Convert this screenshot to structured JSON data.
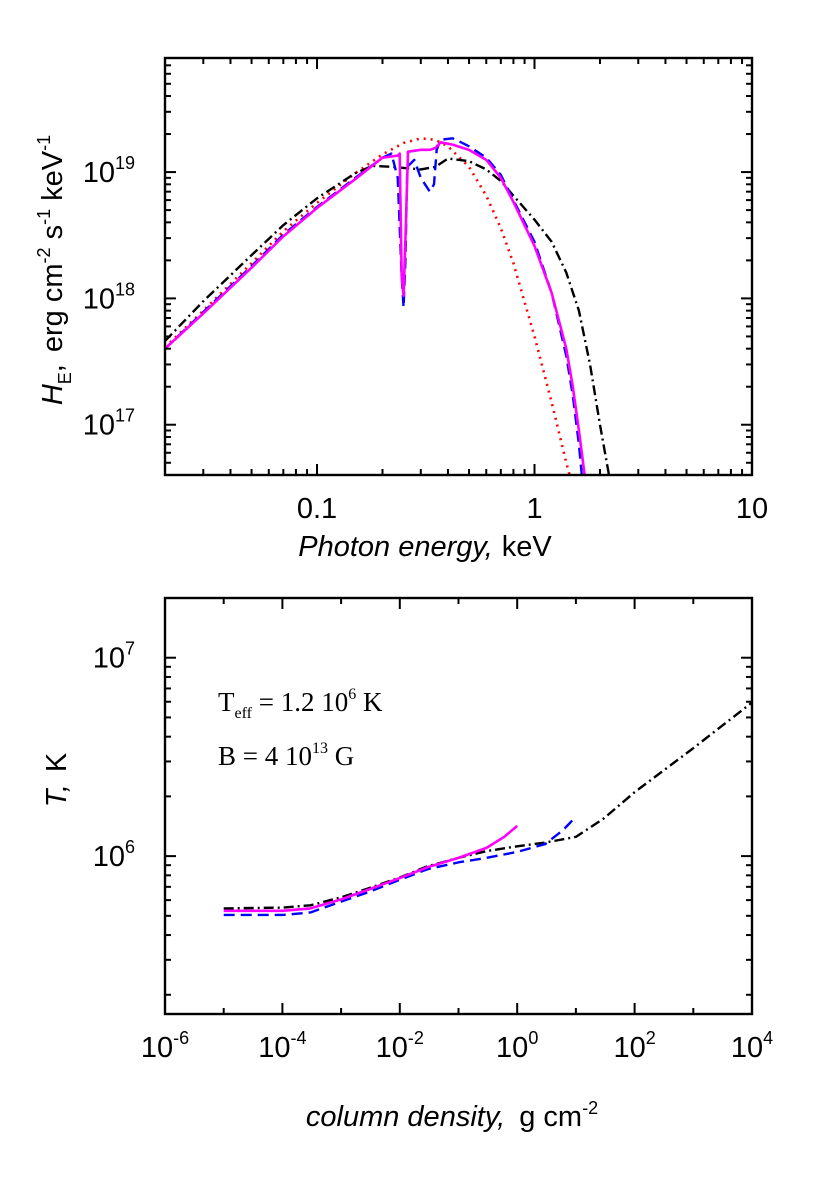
{
  "chart_data": [
    {
      "type": "line",
      "id": "spectrum",
      "xscale": "log",
      "yscale": "log",
      "xlim": [
        0.02,
        10
      ],
      "ylim": [
        4e+16,
        8e+19
      ],
      "xlabel_italic": "Photon energy,",
      "xlabel_unit": "keV",
      "ylabel_symbol": "H",
      "ylabel_sub": "E",
      "ylabel_comma": ",",
      "ylabel_unit_parts": [
        "erg cm",
        "-2",
        " s",
        "-1",
        " keV",
        "-1"
      ],
      "xticks": [
        {
          "value": 0.1,
          "label": "0.1"
        },
        {
          "value": 1,
          "label": "1"
        },
        {
          "value": 10,
          "label": "10"
        }
      ],
      "yticks": [
        {
          "value": 1e+17,
          "base": "10",
          "exp": "17"
        },
        {
          "value": 1e+18,
          "base": "10",
          "exp": "18"
        },
        {
          "value": 1e+19,
          "base": "10",
          "exp": "19"
        }
      ],
      "series": [
        {
          "name": "dotted-red",
          "color": "#ff0000",
          "dash": "2,5",
          "width": 2.6,
          "points": [
            [
              0.02,
              4.1e+17
            ],
            [
              0.03,
              8e+17
            ],
            [
              0.05,
              1.9e+18
            ],
            [
              0.07,
              3.4e+18
            ],
            [
              0.1,
              5.7e+18
            ],
            [
              0.15,
              9.8e+18
            ],
            [
              0.2,
              1.38e+19
            ],
            [
              0.25,
              1.7e+19
            ],
            [
              0.3,
              1.85e+19
            ],
            [
              0.35,
              1.8e+19
            ],
            [
              0.4,
              1.6e+19
            ],
            [
              0.5,
              1.1e+19
            ],
            [
              0.6,
              6.5e+18
            ],
            [
              0.7,
              3.6e+18
            ],
            [
              0.8,
              1.9e+18
            ],
            [
              1.0,
              5e+17
            ],
            [
              1.2,
              1.5e+17
            ],
            [
              1.4,
              5e+16
            ],
            [
              1.45,
              4e+16
            ]
          ]
        },
        {
          "name": "dash-dot-black",
          "color": "#000000",
          "dash": "10,4,2,4",
          "width": 2.4,
          "points": [
            [
              0.02,
              4.6e+17
            ],
            [
              0.03,
              9.5e+17
            ],
            [
              0.05,
              2.2e+18
            ],
            [
              0.07,
              3.8e+18
            ],
            [
              0.1,
              6.2e+18
            ],
            [
              0.15,
              9.8e+18
            ],
            [
              0.18,
              1.12e+19
            ],
            [
              0.22,
              1.1e+19
            ],
            [
              0.3,
              1.05e+19
            ],
            [
              0.35,
              1.1e+19
            ],
            [
              0.4,
              1.28e+19
            ],
            [
              0.5,
              1.22e+19
            ],
            [
              0.6,
              1.05e+19
            ],
            [
              0.7,
              8.5e+18
            ],
            [
              0.8,
              6.5e+18
            ],
            [
              1.0,
              4.2e+18
            ],
            [
              1.2,
              2.8e+18
            ],
            [
              1.4,
              1.6e+18
            ],
            [
              1.6,
              8e+17
            ],
            [
              1.8,
              3e+17
            ],
            [
              2.0,
              1e+17
            ],
            [
              2.2,
              4e+16
            ]
          ]
        },
        {
          "name": "dashed-blue",
          "color": "#0000ff",
          "dash": "11,6",
          "width": 2.4,
          "points": [
            [
              0.02,
              4e+17
            ],
            [
              0.03,
              7.8e+17
            ],
            [
              0.05,
              1.8e+18
            ],
            [
              0.07,
              3.2e+18
            ],
            [
              0.1,
              5.3e+18
            ],
            [
              0.15,
              9e+18
            ],
            [
              0.2,
              1.3e+19
            ],
            [
              0.22,
              1.4e+19
            ],
            [
              0.235,
              9e+18
            ],
            [
              0.245,
              1.5e+18
            ],
            [
              0.25,
              8.5e+17
            ],
            [
              0.255,
              2e+18
            ],
            [
              0.26,
              1.1e+19
            ],
            [
              0.28,
              1.25e+19
            ],
            [
              0.3,
              9e+18
            ],
            [
              0.33,
              7e+18
            ],
            [
              0.345,
              8e+18
            ],
            [
              0.355,
              1.5e+19
            ],
            [
              0.37,
              1.8e+19
            ],
            [
              0.42,
              1.85e+19
            ],
            [
              0.45,
              1.75e+19
            ],
            [
              0.5,
              1.6e+19
            ],
            [
              0.6,
              1.3e+19
            ],
            [
              0.7,
              9.5e+18
            ],
            [
              0.8,
              6e+18
            ],
            [
              1.0,
              2.8e+18
            ],
            [
              1.2,
              1.1e+18
            ],
            [
              1.4,
              3.5e+17
            ],
            [
              1.5,
              1.7e+17
            ],
            [
              1.6,
              7e+16
            ],
            [
              1.65,
              4e+16
            ]
          ]
        },
        {
          "name": "solid-magenta",
          "color": "#ff00ff",
          "dash": "",
          "width": 2.6,
          "points": [
            [
              0.02,
              4e+17
            ],
            [
              0.03,
              7.6e+17
            ],
            [
              0.05,
              1.75e+18
            ],
            [
              0.07,
              3.1e+18
            ],
            [
              0.1,
              5.2e+18
            ],
            [
              0.15,
              8.8e+18
            ],
            [
              0.2,
              1.3e+19
            ],
            [
              0.235,
              1.35e+19
            ],
            [
              0.24,
              1.4e+19
            ],
            [
              0.245,
              1.5e+18
            ],
            [
              0.25,
              1.05e+18
            ],
            [
              0.255,
              3e+18
            ],
            [
              0.262,
              1.45e+19
            ],
            [
              0.3,
              1.5e+19
            ],
            [
              0.33,
              1.5e+19
            ],
            [
              0.35,
              1.55e+19
            ],
            [
              0.37,
              1.72e+19
            ],
            [
              0.42,
              1.65e+19
            ],
            [
              0.5,
              1.5e+19
            ],
            [
              0.6,
              1.25e+19
            ],
            [
              0.7,
              9e+18
            ],
            [
              0.8,
              5.8e+18
            ],
            [
              1.0,
              2.6e+18
            ],
            [
              1.2,
              1.1e+18
            ],
            [
              1.4,
              4e+17
            ],
            [
              1.5,
              2e+17
            ],
            [
              1.6,
              9e+16
            ],
            [
              1.7,
              4e+16
            ]
          ]
        }
      ]
    },
    {
      "type": "line",
      "id": "temperature",
      "xscale": "log",
      "yscale": "log",
      "xlim": [
        1e-06,
        10000.0
      ],
      "ylim": [
        160000.0,
        20000000.0
      ],
      "xlabel_italic": "column density,",
      "xlabel_unit": "g cm",
      "xlabel_unit_exp": "-2",
      "ylabel_italic": "T,",
      "ylabel_unit": "K",
      "annotation_teff": {
        "main": "T",
        "sub": "eff",
        "mid": " = 1.2 10",
        "exp": "6",
        "end": " K"
      },
      "annotation_b": {
        "main": "B = 4 10",
        "exp": "13",
        "end": " G"
      },
      "xticks": [
        {
          "value": 1e-06,
          "base": "10",
          "exp": "-6"
        },
        {
          "value": 0.0001,
          "base": "10",
          "exp": "-4"
        },
        {
          "value": 0.01,
          "base": "10",
          "exp": "-2"
        },
        {
          "value": 1,
          "base": "10",
          "exp": "0"
        },
        {
          "value": 100.0,
          "base": "10",
          "exp": "2"
        },
        {
          "value": 10000.0,
          "base": "10",
          "exp": "4"
        }
      ],
      "yticks": [
        {
          "value": 1000000.0,
          "base": "10",
          "exp": "6"
        },
        {
          "value": 10000000.0,
          "base": "10",
          "exp": "7"
        }
      ],
      "series": [
        {
          "name": "dash-dot-black",
          "color": "#000000",
          "dash": "10,4,2,4",
          "width": 2.4,
          "points": [
            [
              1e-05,
              545000.0
            ],
            [
              0.0001,
              550000.0
            ],
            [
              0.0003,
              565000.0
            ],
            [
              0.001,
              620000.0
            ],
            [
              0.003,
              690000.0
            ],
            [
              0.01,
              780000.0
            ],
            [
              0.03,
              890000.0
            ],
            [
              0.1,
              980000.0
            ],
            [
              0.3,
              1060000.0
            ],
            [
              1,
              1120000.0
            ],
            [
              3,
              1170000.0
            ],
            [
              10,
              1250000.0
            ],
            [
              30,
              1550000.0
            ],
            [
              100,
              2100000.0
            ],
            [
              1000,
              3500000.0
            ],
            [
              12000.0,
              6200000.0
            ]
          ]
        },
        {
          "name": "dashed-blue",
          "color": "#0000ff",
          "dash": "11,6",
          "width": 2.4,
          "points": [
            [
              1e-05,
              505000.0
            ],
            [
              0.0001,
              505000.0
            ],
            [
              0.0003,
              520000.0
            ],
            [
              0.001,
              590000.0
            ],
            [
              0.003,
              660000.0
            ],
            [
              0.01,
              760000.0
            ],
            [
              0.03,
              860000.0
            ],
            [
              0.1,
              930000.0
            ],
            [
              0.3,
              980000.0
            ],
            [
              1,
              1050000.0
            ],
            [
              3,
              1150000.0
            ],
            [
              6,
              1350000.0
            ],
            [
              10,
              1580000.0
            ]
          ]
        },
        {
          "name": "solid-magenta",
          "color": "#ff00ff",
          "dash": "",
          "width": 2.6,
          "points": [
            [
              1e-05,
              530000.0
            ],
            [
              0.0001,
              530000.0
            ],
            [
              0.0003,
              545000.0
            ],
            [
              0.001,
              605000.0
            ],
            [
              0.003,
              680000.0
            ],
            [
              0.01,
              775000.0
            ],
            [
              0.03,
              880000.0
            ],
            [
              0.1,
              980000.0
            ],
            [
              0.3,
              1100000.0
            ],
            [
              0.6,
              1250000.0
            ],
            [
              1,
              1420000.0
            ]
          ]
        }
      ]
    }
  ]
}
